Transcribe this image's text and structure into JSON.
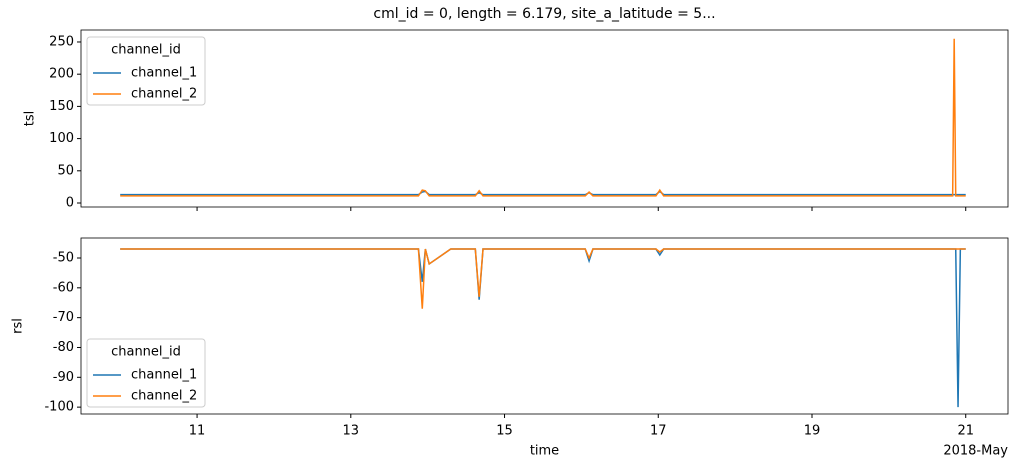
{
  "chart_data": [
    {
      "type": "line",
      "title": "cml_id = 0, length = 6.179, site_a_latitude = 5...",
      "ylabel": "tsl",
      "x": [
        10.0,
        10.5,
        11.0,
        11.5,
        12.0,
        12.5,
        13.0,
        13.5,
        13.88,
        13.93,
        13.97,
        14.02,
        14.3,
        14.62,
        14.67,
        14.72,
        15.0,
        15.5,
        16.05,
        16.1,
        16.15,
        16.5,
        16.97,
        17.02,
        17.07,
        17.5,
        18.0,
        18.5,
        19.0,
        19.5,
        20.0,
        20.5,
        20.83,
        20.85,
        20.87,
        20.9,
        20.93,
        21.0
      ],
      "series": [
        {
          "name": "channel_1",
          "color": "#1f77b4",
          "values": [
            13,
            13,
            13,
            13,
            13,
            13,
            13,
            13,
            13,
            17,
            18,
            13,
            13,
            13,
            16,
            13,
            13,
            13,
            13,
            16,
            13,
            13,
            13,
            18,
            13,
            13,
            13,
            13,
            13,
            13,
            13,
            13,
            13,
            13,
            13,
            13,
            13,
            13
          ]
        },
        {
          "name": "channel_2",
          "color": "#ff7f0e",
          "values": [
            11,
            11,
            11,
            11,
            11,
            11,
            11,
            11,
            11,
            20,
            19,
            11,
            11,
            11,
            19,
            11,
            11,
            11,
            11,
            17,
            11,
            11,
            11,
            20,
            11,
            11,
            11,
            11,
            11,
            11,
            11,
            11,
            11,
            255,
            11,
            11,
            11,
            11
          ]
        }
      ],
      "legend_title": "channel_id",
      "legend": "upper left",
      "xlim": [
        9.49,
        21.55
      ],
      "xticks": [
        11,
        13,
        15,
        17,
        19,
        21
      ],
      "show_xtick_labels": false,
      "ylim": [
        -6.2,
        268.6
      ],
      "yticks": [
        0,
        50,
        100,
        150,
        200,
        250
      ]
    },
    {
      "type": "line",
      "ylabel": "rsl",
      "xlabel": "time",
      "x_offset_label": "2018-May",
      "x": [
        10.0,
        10.5,
        11.0,
        11.5,
        12.0,
        12.5,
        13.0,
        13.5,
        13.88,
        13.93,
        13.97,
        14.02,
        14.3,
        14.62,
        14.67,
        14.72,
        15.0,
        15.5,
        16.05,
        16.1,
        16.15,
        16.5,
        16.97,
        17.02,
        17.07,
        17.5,
        18.0,
        18.5,
        19.0,
        19.5,
        20.0,
        20.5,
        20.83,
        20.85,
        20.87,
        20.9,
        20.93,
        21.0
      ],
      "series": [
        {
          "name": "channel_1",
          "color": "#1f77b4",
          "values": [
            -47,
            -47,
            -47,
            -47,
            -47,
            -47,
            -47,
            -47,
            -47,
            -58,
            -47,
            -52,
            -47,
            -47,
            -64,
            -47,
            -47,
            -47,
            -47,
            -51,
            -47,
            -47,
            -47,
            -49,
            -47,
            -47,
            -47,
            -47,
            -47,
            -47,
            -47,
            -47,
            -47,
            -47,
            -47,
            -100,
            -47,
            -47
          ]
        },
        {
          "name": "channel_2",
          "color": "#ff7f0e",
          "values": [
            -47,
            -47,
            -47,
            -47,
            -47,
            -47,
            -47,
            -47,
            -47,
            -67,
            -47,
            -52,
            -47,
            -47,
            -63,
            -47,
            -47,
            -47,
            -47,
            -50,
            -47,
            -47,
            -47,
            -48,
            -47,
            -47,
            -47,
            -47,
            -47,
            -47,
            -47,
            -47,
            -47,
            -47,
            -47,
            -47,
            -47,
            -47
          ]
        }
      ],
      "legend_title": "channel_id",
      "legend": "lower left",
      "xlim": [
        9.49,
        21.55
      ],
      "xticks": [
        11,
        13,
        15,
        17,
        19,
        21
      ],
      "show_xtick_labels": true,
      "ylim": [
        -102.3,
        -43.3
      ],
      "yticks": [
        -100,
        -90,
        -80,
        -70,
        -60,
        -50
      ]
    }
  ]
}
